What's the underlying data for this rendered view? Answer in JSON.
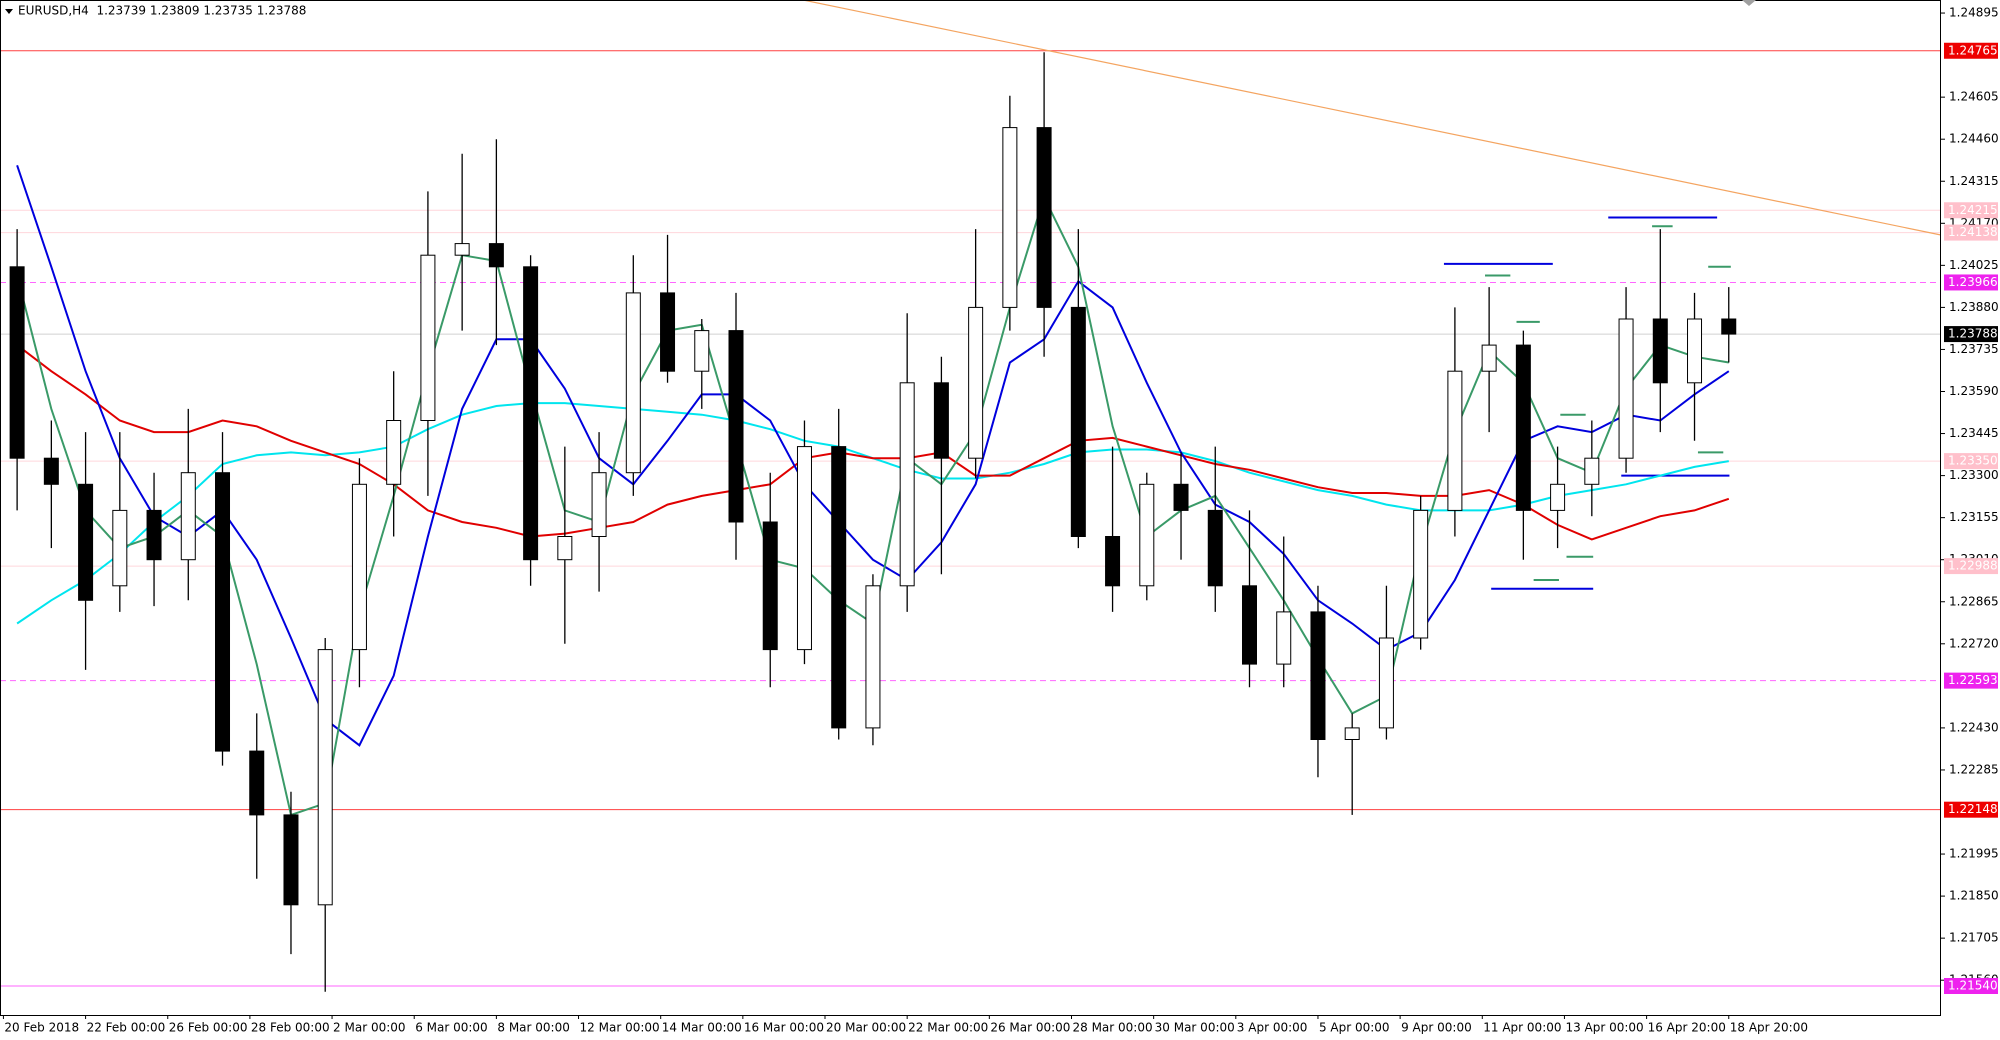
{
  "chart_data": {
    "type": "candlestick",
    "title": "EURUSD,H4  1.23739 1.23809 1.23735 1.23788",
    "xlim": [
      -0.5,
      283
    ],
    "ylim": [
      1.2144,
      1.2494
    ],
    "x": [
      2,
      7,
      12,
      17,
      22,
      27,
      32,
      37,
      42,
      47,
      52,
      57,
      62,
      67,
      72,
      77,
      82,
      87,
      92,
      97,
      102,
      107,
      112,
      117,
      122,
      127,
      132,
      137,
      142,
      147,
      152,
      157,
      162,
      167,
      172,
      177,
      182,
      187,
      192,
      197,
      202,
      207,
      212,
      217,
      222,
      227,
      232,
      237,
      242,
      247,
      252
    ],
    "open": [
      1.2402,
      1.2336,
      1.2327,
      1.2292,
      1.2318,
      1.2301,
      1.2331,
      1.2235,
      1.2213,
      1.2182,
      1.227,
      1.2327,
      1.2349,
      1.2406,
      1.241,
      1.2402,
      1.2301,
      1.2309,
      1.2331,
      1.2393,
      1.2366,
      1.238,
      1.2314,
      1.227,
      1.234,
      1.2243,
      1.2292,
      1.2362,
      1.2336,
      1.2388,
      1.245,
      1.2388,
      1.2309,
      1.2292,
      1.2327,
      1.2318,
      1.2292,
      1.2265,
      1.2283,
      1.2239,
      1.2243,
      1.2274,
      1.2318,
      1.2366,
      1.2375,
      1.2318,
      1.2327,
      1.2336,
      1.2384,
      1.2362,
      1.2384
    ],
    "high": [
      1.2415,
      1.2349,
      1.2345,
      1.2345,
      1.2331,
      1.2353,
      1.2345,
      1.2248,
      1.2221,
      1.2274,
      1.2336,
      1.2366,
      1.2428,
      1.2441,
      1.2446,
      1.2406,
      1.234,
      1.2345,
      1.2406,
      1.2413,
      1.2384,
      1.2393,
      1.2331,
      1.2349,
      1.2353,
      1.2296,
      1.2386,
      1.2371,
      1.2415,
      1.2461,
      1.2476,
      1.2415,
      1.234,
      1.2331,
      1.2338,
      1.234,
      1.2318,
      1.2309,
      1.2292,
      1.2248,
      1.2292,
      1.2323,
      1.2388,
      1.2395,
      1.238,
      1.234,
      1.2349,
      1.2395,
      1.2415,
      1.2393,
      1.2395
    ],
    "low": [
      1.2318,
      1.2305,
      1.2263,
      1.2283,
      1.2285,
      1.2287,
      1.223,
      1.2191,
      1.2165,
      1.2152,
      1.2257,
      1.2309,
      1.2323,
      1.238,
      1.2375,
      1.2292,
      1.2272,
      1.229,
      1.2323,
      1.2362,
      1.2353,
      1.2301,
      1.2257,
      1.2265,
      1.2239,
      1.2237,
      1.2283,
      1.2296,
      1.2329,
      1.238,
      1.2371,
      1.2305,
      1.2283,
      1.2287,
      1.2301,
      1.2283,
      1.2257,
      1.2257,
      1.2226,
      1.2213,
      1.2239,
      1.227,
      1.2309,
      1.2345,
      1.2301,
      1.2305,
      1.2316,
      1.2331,
      1.2345,
      1.2342,
      1.2369
    ],
    "close": [
      1.2336,
      1.2327,
      1.2287,
      1.2318,
      1.2301,
      1.2331,
      1.2235,
      1.2213,
      1.2182,
      1.227,
      1.2327,
      1.2349,
      1.2406,
      1.241,
      1.2402,
      1.2301,
      1.2309,
      1.2331,
      1.2393,
      1.2366,
      1.238,
      1.2314,
      1.227,
      1.234,
      1.2243,
      1.2292,
      1.2362,
      1.2336,
      1.2388,
      1.245,
      1.2388,
      1.2309,
      1.2292,
      1.2327,
      1.2318,
      1.2292,
      1.2265,
      1.2283,
      1.2239,
      1.2243,
      1.2274,
      1.2318,
      1.2366,
      1.2375,
      1.2318,
      1.2327,
      1.2336,
      1.2384,
      1.2362,
      1.2384,
      1.23788
    ],
    "bull_color": "#ffffff",
    "bear_color": "#000000",
    "series": [
      {
        "color": "#00e5ee",
        "values": [
          1.2279,
          1.2287,
          1.2294,
          1.2303,
          1.2314,
          1.2323,
          1.2334,
          1.2337,
          1.2338,
          1.2337,
          1.2338,
          1.234,
          1.2346,
          1.2351,
          1.2354,
          1.2355,
          1.2355,
          1.2354,
          1.2353,
          1.2352,
          1.2351,
          1.2349,
          1.2346,
          1.2342,
          1.234,
          1.2336,
          1.2332,
          1.2329,
          1.2329,
          1.2331,
          1.2334,
          1.2338,
          1.2339,
          1.2339,
          1.2338,
          1.2335,
          1.2331,
          1.2328,
          1.2325,
          1.2323,
          1.232,
          1.2318,
          1.2318,
          1.2318,
          1.232,
          1.2323,
          1.2325,
          1.2327,
          1.233,
          1.2333,
          1.2335
        ]
      },
      {
        "color": "#e00000",
        "values": [
          1.2375,
          1.2366,
          1.2358,
          1.2349,
          1.2345,
          1.2345,
          1.2349,
          1.2347,
          1.2342,
          1.2338,
          1.2334,
          1.2327,
          1.2318,
          1.2314,
          1.2312,
          1.2309,
          1.231,
          1.2312,
          1.2314,
          1.232,
          1.2323,
          1.2325,
          1.2327,
          1.2336,
          1.2338,
          1.2336,
          1.2336,
          1.2338,
          1.233,
          1.233,
          1.2336,
          1.2342,
          1.2343,
          1.234,
          1.2337,
          1.2334,
          1.2332,
          1.2329,
          1.2326,
          1.2324,
          1.2324,
          1.2323,
          1.2323,
          1.2325,
          1.232,
          1.2313,
          1.2308,
          1.2312,
          1.2316,
          1.2318,
          1.2322
        ]
      },
      {
        "color": "#0000dd",
        "values": [
          1.2437,
          1.2402,
          1.2366,
          1.2336,
          1.2316,
          1.2309,
          1.2318,
          1.2301,
          1.2274,
          1.2246,
          1.2237,
          1.2261,
          1.2309,
          1.2353,
          1.2377,
          1.2377,
          1.236,
          1.2336,
          1.2327,
          1.2342,
          1.2358,
          1.2358,
          1.2349,
          1.2327,
          1.2314,
          1.2301,
          1.2294,
          1.2307,
          1.2327,
          1.2369,
          1.2377,
          1.2397,
          1.2388,
          1.2362,
          1.2338,
          1.232,
          1.2314,
          1.2303,
          1.2287,
          1.2279,
          1.227,
          1.2276,
          1.2294,
          1.2318,
          1.2342,
          1.2347,
          1.2345,
          1.2351,
          1.2349,
          1.2358,
          1.2366
        ]
      },
      {
        "color": "#3a9a68",
        "values": [
          1.2399,
          1.2353,
          1.2318,
          1.2305,
          1.2309,
          1.2318,
          1.2309,
          1.2265,
          1.2213,
          1.2217,
          1.2283,
          1.2323,
          1.2366,
          1.2406,
          1.2404,
          1.236,
          1.2318,
          1.2314,
          1.2358,
          1.238,
          1.2382,
          1.2342,
          1.2301,
          1.2298,
          1.2287,
          1.2279,
          1.2336,
          1.2327,
          1.2345,
          1.2388,
          1.2426,
          1.2402,
          1.2347,
          1.2309,
          1.2318,
          1.2323,
          1.2305,
          1.2287,
          1.2267,
          1.2248,
          1.2254,
          1.2305,
          1.2345,
          1.2373,
          1.2362,
          1.2336,
          1.2331,
          1.236,
          1.2375,
          1.2371,
          1.2369
        ]
      }
    ],
    "levels": [
      {
        "value": 1.24765,
        "color": "#ff4040",
        "box": "#ee0000",
        "dash": false
      },
      {
        "value": 1.24215,
        "color": "#ffd6dc",
        "box": "#ffc0cb",
        "dash": false
      },
      {
        "value": 1.24138,
        "color": "#ffd6dc",
        "box": "#ffc0cb",
        "dash": false
      },
      {
        "value": 1.23966,
        "color": "#ff66ff",
        "box": "#ee22ee",
        "dash": true
      },
      {
        "value": 1.23788,
        "color": "#d0d0d0",
        "box": "#000000",
        "dash": false
      },
      {
        "value": 1.2335,
        "label": "1.23350",
        "color": "#ffd6dc",
        "box": "#ffc0cb",
        "dash": false
      },
      {
        "value": 1.22988,
        "color": "#ffd6dc",
        "box": "#ffc0cb",
        "dash": false
      },
      {
        "value": 1.22593,
        "color": "#ff66ff",
        "box": "#ee22ee",
        "dash": true
      },
      {
        "value": 1.22148,
        "color": "#ff4040",
        "box": "#ee0000",
        "dash": false
      },
      {
        "value": 1.2154,
        "label": "1.21540",
        "color": "#ff66ff",
        "box": "#ee22ee",
        "dash": false
      }
    ],
    "trendline": {
      "x": [
        116.8,
        282.9
      ],
      "y": [
        1.2494,
        1.2413
      ],
      "color": "#f4a460"
    },
    "segments": [
      {
        "x": [
          210.4,
          226.3
        ],
        "y": 1.2403,
        "color": "#0000dd"
      },
      {
        "x": [
          234.4,
          250.3
        ],
        "y": 1.2419,
        "color": "#0000dd"
      },
      {
        "x": [
          217.3,
          232.2
        ],
        "y": 1.2291,
        "color": "#0000dd"
      },
      {
        "x": [
          236.3,
          252.1
        ],
        "y": 1.233,
        "color": "#0000dd"
      },
      {
        "x": [
          216.4,
          220.1
        ],
        "y": 1.2399,
        "color": "#3a9a68"
      },
      {
        "x": [
          221.0,
          224.4
        ],
        "y": 1.2383,
        "color": "#3a9a68"
      },
      {
        "x": [
          227.4,
          231.1
        ],
        "y": 1.2351,
        "color": "#3a9a68"
      },
      {
        "x": [
          223.5,
          227.2
        ],
        "y": 1.2294,
        "color": "#3a9a68"
      },
      {
        "x": [
          228.3,
          232.2
        ],
        "y": 1.2302,
        "color": "#3a9a68"
      },
      {
        "x": [
          240.8,
          243.8
        ],
        "y": 1.2416,
        "color": "#3a9a68"
      },
      {
        "x": [
          249.0,
          252.3
        ],
        "y": 1.2402,
        "color": "#3a9a68"
      },
      {
        "x": [
          247.5,
          251.2
        ],
        "y": 1.2338,
        "color": "#3a9a68"
      }
    ],
    "yticks": [
      1.24895,
      {
        "value": 1.24605,
        "label": "1.24605"
      },
      {
        "value": 1.2446,
        "label": "1.24460"
      },
      1.24315,
      {
        "value": 1.2417,
        "label": "1.24170"
      },
      1.24025,
      {
        "value": 1.2388,
        "label": "1.23880"
      },
      1.23735,
      {
        "value": 1.2359,
        "label": "1.23590"
      },
      1.23445,
      {
        "value": 1.233,
        "label": "1.23300"
      },
      1.23155,
      {
        "value": 1.2301,
        "label": "1.23010"
      },
      1.22865,
      {
        "value": 1.2272,
        "label": "1.22720"
      },
      {
        "value": 1.2243,
        "label": "1.22430"
      },
      1.22285,
      1.21995,
      {
        "value": 1.2185,
        "label": "1.21850"
      },
      1.21705,
      {
        "value": 1.2156,
        "label": "1.21560"
      }
    ],
    "xticks": [
      {
        "value": 0,
        "label": "20 Feb 2018"
      },
      {
        "value": 12,
        "label": "22 Feb 00:00"
      },
      {
        "value": 24,
        "label": "26 Feb 00:00"
      },
      {
        "value": 36,
        "label": "28 Feb 00:00"
      },
      {
        "value": 48,
        "label": "2 Mar 00:00"
      },
      {
        "value": 60,
        "label": "6 Mar 00:00"
      },
      {
        "value": 72,
        "label": "8 Mar 00:00"
      },
      {
        "value": 84,
        "label": "12 Mar 00:00"
      },
      {
        "value": 96,
        "label": "14 Mar 00:00"
      },
      {
        "value": 108,
        "label": "16 Mar 00:00"
      },
      {
        "value": 120,
        "label": "20 Mar 00:00"
      },
      {
        "value": 132,
        "label": "22 Mar 00:00"
      },
      {
        "value": 144,
        "label": "26 Mar 00:00"
      },
      {
        "value": 156,
        "label": "28 Mar 00:00"
      },
      {
        "value": 168,
        "label": "30 Mar 00:00"
      },
      {
        "value": 180,
        "label": "3 Apr 00:00"
      },
      {
        "value": 192,
        "label": "5 Apr 00:00"
      },
      {
        "value": 204,
        "label": "9 Apr 00:00"
      },
      {
        "value": 216,
        "label": "11 Apr 00:00"
      },
      {
        "value": 228,
        "label": "13 Apr 00:00"
      },
      {
        "value": 240,
        "label": "16 Apr 20:00"
      },
      {
        "value": 252,
        "label": "18 Apr 20:00"
      }
    ]
  }
}
